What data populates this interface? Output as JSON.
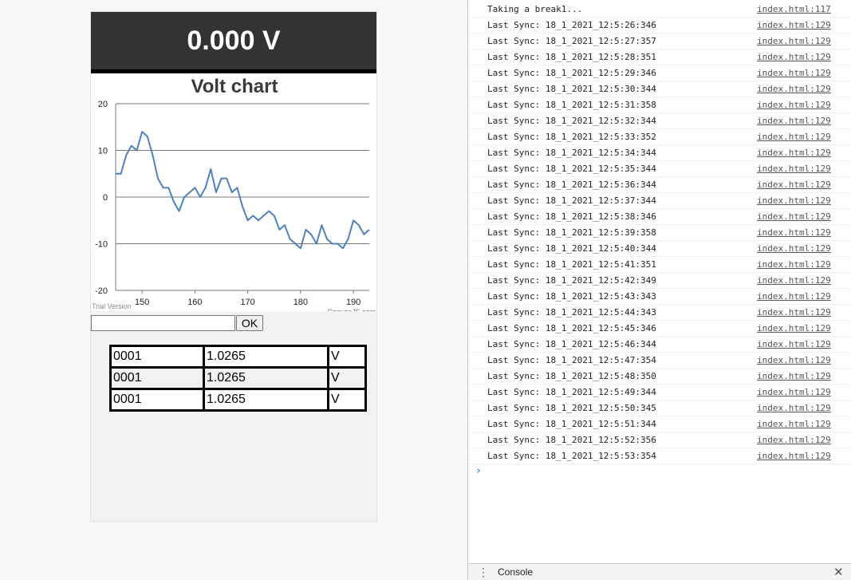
{
  "app": {
    "reading": "0.000 V",
    "input_value": "",
    "input_placeholder": "",
    "ok_label": "OK",
    "table": [
      [
        "0001",
        "1.0265",
        "V"
      ],
      [
        "0001",
        "1.0265",
        "V"
      ],
      [
        "0001",
        "1.0265",
        "V"
      ]
    ]
  },
  "chart_data": {
    "type": "line",
    "title": "Volt chart",
    "xlabel": "",
    "ylabel": "",
    "xlim": [
      145,
      193
    ],
    "ylim": [
      -20,
      20
    ],
    "x_ticks": [
      150,
      160,
      170,
      180,
      190
    ],
    "y_ticks": [
      20,
      10,
      0,
      -10,
      -20
    ],
    "grid": true,
    "watermark_left": "Trial Version",
    "watermark_right": "CanvasJS.com",
    "color": "#4f81bc",
    "series": [
      {
        "x": [
          145,
          146,
          147,
          148,
          149,
          150,
          151,
          152,
          153,
          154,
          155,
          156,
          157,
          158,
          159,
          160,
          161,
          162,
          163,
          164,
          165,
          166,
          167,
          168,
          169,
          170,
          171,
          172,
          173,
          174,
          175,
          176,
          177,
          178,
          179,
          180,
          181,
          182,
          183,
          184,
          185,
          186,
          187,
          188,
          189,
          190,
          191,
          192,
          193
        ],
        "values": [
          5,
          5,
          9,
          11,
          10,
          14,
          13,
          9,
          4,
          2,
          2,
          -1,
          -3,
          0,
          1,
          2,
          0,
          2,
          6,
          1,
          4,
          4,
          1,
          2,
          -2,
          -5,
          -4,
          -5,
          -4,
          -3,
          -4,
          -7,
          -6,
          -9,
          -10,
          -11,
          -7,
          -8,
          -10,
          -6,
          -9,
          -10,
          -10,
          -11,
          -9,
          -5,
          -6,
          -8,
          -7
        ]
      }
    ]
  },
  "console": {
    "messages": [
      {
        "text": "Taking a break1...",
        "source": "index.html:117"
      },
      {
        "text": "Last Sync: 18_1_2021_12:5:26:346",
        "source": "index.html:129"
      },
      {
        "text": "Last Sync: 18_1_2021_12:5:27:357",
        "source": "index.html:129"
      },
      {
        "text": "Last Sync: 18_1_2021_12:5:28:351",
        "source": "index.html:129"
      },
      {
        "text": "Last Sync: 18_1_2021_12:5:29:346",
        "source": "index.html:129"
      },
      {
        "text": "Last Sync: 18_1_2021_12:5:30:344",
        "source": "index.html:129"
      },
      {
        "text": "Last Sync: 18_1_2021_12:5:31:358",
        "source": "index.html:129"
      },
      {
        "text": "Last Sync: 18_1_2021_12:5:32:344",
        "source": "index.html:129"
      },
      {
        "text": "Last Sync: 18_1_2021_12:5:33:352",
        "source": "index.html:129"
      },
      {
        "text": "Last Sync: 18_1_2021_12:5:34:344",
        "source": "index.html:129"
      },
      {
        "text": "Last Sync: 18_1_2021_12:5:35:344",
        "source": "index.html:129"
      },
      {
        "text": "Last Sync: 18_1_2021_12:5:36:344",
        "source": "index.html:129"
      },
      {
        "text": "Last Sync: 18_1_2021_12:5:37:344",
        "source": "index.html:129"
      },
      {
        "text": "Last Sync: 18_1_2021_12:5:38:346",
        "source": "index.html:129"
      },
      {
        "text": "Last Sync: 18_1_2021_12:5:39:358",
        "source": "index.html:129"
      },
      {
        "text": "Last Sync: 18_1_2021_12:5:40:344",
        "source": "index.html:129"
      },
      {
        "text": "Last Sync: 18_1_2021_12:5:41:351",
        "source": "index.html:129"
      },
      {
        "text": "Last Sync: 18_1_2021_12:5:42:349",
        "source": "index.html:129"
      },
      {
        "text": "Last Sync: 18_1_2021_12:5:43:343",
        "source": "index.html:129"
      },
      {
        "text": "Last Sync: 18_1_2021_12:5:44:343",
        "source": "index.html:129"
      },
      {
        "text": "Last Sync: 18_1_2021_12:5:45:346",
        "source": "index.html:129"
      },
      {
        "text": "Last Sync: 18_1_2021_12:5:46:344",
        "source": "index.html:129"
      },
      {
        "text": "Last Sync: 18_1_2021_12:5:47:354",
        "source": "index.html:129"
      },
      {
        "text": "Last Sync: 18_1_2021_12:5:48:350",
        "source": "index.html:129"
      },
      {
        "text": "Last Sync: 18_1_2021_12:5:49:344",
        "source": "index.html:129"
      },
      {
        "text": "Last Sync: 18_1_2021_12:5:50:345",
        "source": "index.html:129"
      },
      {
        "text": "Last Sync: 18_1_2021_12:5:51:344",
        "source": "index.html:129"
      },
      {
        "text": "Last Sync: 18_1_2021_12:5:52:356",
        "source": "index.html:129"
      },
      {
        "text": "Last Sync: 18_1_2021_12:5:53:354",
        "source": "index.html:129"
      }
    ],
    "prompt_icon": "chevron-right-icon",
    "drawer_menu_icon": "kebab-menu-icon",
    "drawer_tab": "Console",
    "drawer_close_icon": "close-icon"
  }
}
